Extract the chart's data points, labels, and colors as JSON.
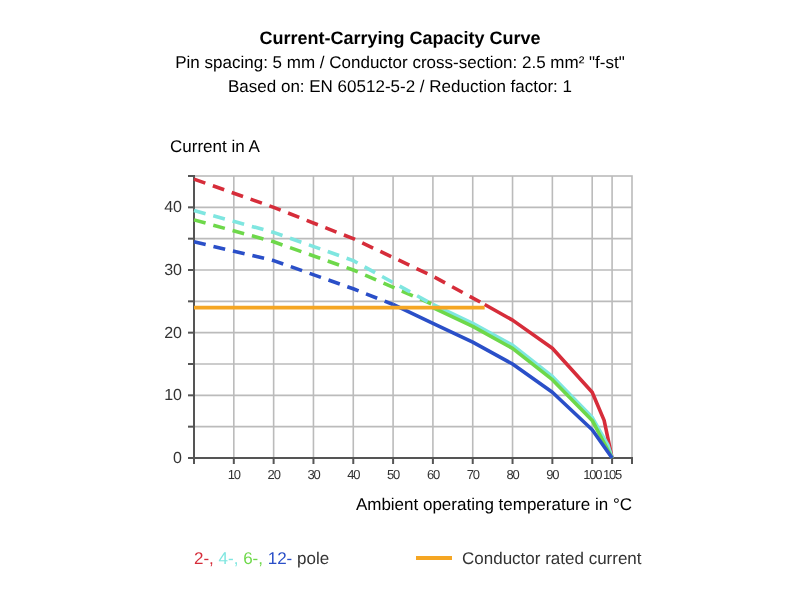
{
  "chart_data": {
    "type": "line",
    "title": "Current-Carrying Capacity Curve",
    "subtitle": "Pin spacing: 5 mm / Conductor cross-section: 2.5 mm² \"f-st\"\nBased on: EN 60512-5-2 / Reduction factor: 1",
    "xlabel": "Ambient operating temperature in °C",
    "ylabel": "Current in A",
    "legend_title": "pole",
    "xlim": [
      0,
      110
    ],
    "xticks": [
      10,
      20,
      30,
      40,
      50,
      60,
      70,
      80,
      90,
      100,
      105
    ],
    "ylim": [
      0,
      45
    ],
    "yticks": [
      0,
      {
        "value": 5,
        "label": null
      },
      10,
      {
        "value": 15,
        "label": null
      },
      20,
      {
        "value": 25,
        "label": null
      },
      30,
      {
        "value": 35,
        "label": null
      },
      40
    ],
    "grid": true,
    "legend": "bottom",
    "marker": "none",
    "series": [
      {
        "color": "#2a4fc8",
        "line_style": "dashed",
        "x": [
          0,
          20,
          40,
          50
        ],
        "values": [
          34.5,
          31.5,
          27,
          24.5
        ]
      },
      {
        "color": "#6ed84a",
        "line_style": "dashed",
        "x": [
          0,
          20,
          40,
          60
        ],
        "values": [
          38,
          34.5,
          30,
          24.5
        ]
      },
      {
        "color": "#7fe6e0",
        "line_style": "dashed",
        "x": [
          0,
          20,
          40,
          60
        ],
        "values": [
          39.5,
          36,
          31.5,
          24.5
        ]
      },
      {
        "color": "#d62d3a",
        "line_style": "dashed",
        "x": [
          0,
          20,
          40,
          60,
          73
        ],
        "values": [
          44.5,
          40,
          35,
          29,
          24.5
        ]
      },
      {
        "name": "2-,",
        "color": "#d62d3a",
        "line_style": "solid",
        "x": [
          73,
          80,
          90,
          100,
          103,
          105
        ],
        "values": [
          24.5,
          22,
          17.5,
          10.5,
          6,
          0
        ]
      },
      {
        "name": "4-,",
        "color": "#7fe6e0",
        "line_style": "solid",
        "x": [
          60,
          70,
          80,
          90,
          100,
          104,
          105
        ],
        "values": [
          24.5,
          21.5,
          18,
          13,
          6.5,
          2,
          0
        ]
      },
      {
        "name": "6-,",
        "color": "#6ed84a",
        "line_style": "solid",
        "x": [
          60,
          70,
          80,
          90,
          100,
          105
        ],
        "values": [
          24,
          21,
          17.5,
          12.5,
          6,
          0
        ]
      },
      {
        "name": "12-",
        "color": "#2a4fc8",
        "line_style": "solid",
        "x": [
          50,
          60,
          70,
          80,
          90,
          100,
          105
        ],
        "values": [
          24.5,
          21.5,
          18.5,
          15,
          10.5,
          4.5,
          0
        ]
      },
      {
        "name": "Conductor rated current",
        "color": "#f5a623",
        "line_style": "solid",
        "x": [
          0,
          73
        ],
        "values": [
          24,
          24
        ]
      }
    ]
  }
}
